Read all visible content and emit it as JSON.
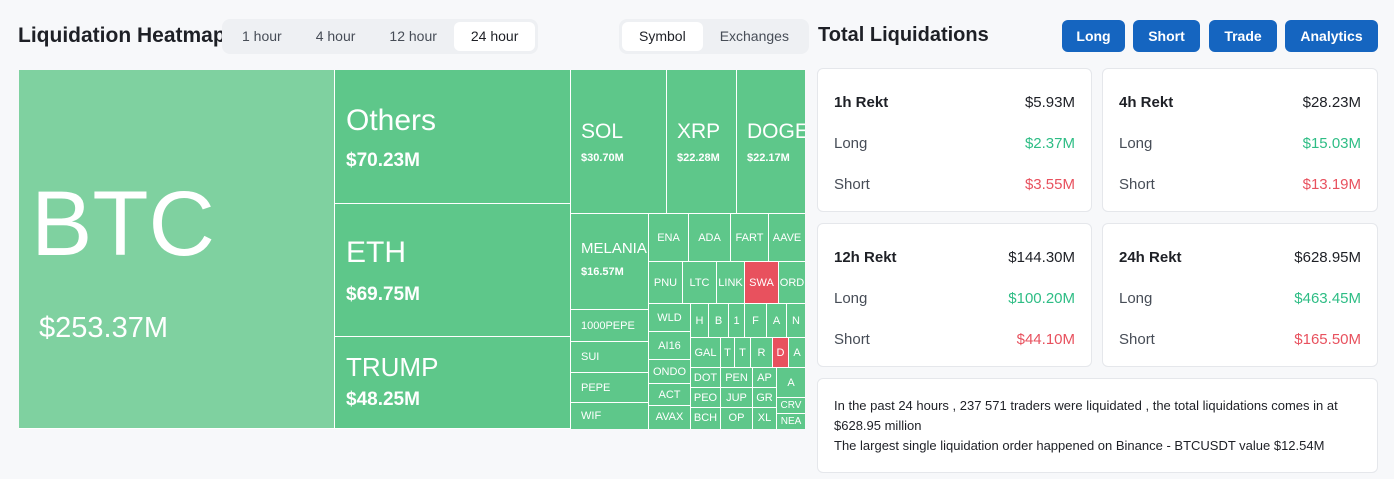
{
  "heatmap": {
    "title": "Liquidation Heatmap",
    "time_tabs": [
      "1 hour",
      "4 hour",
      "12 hour",
      "24 hour"
    ],
    "active_time_tab": "24 hour",
    "view_tabs": [
      "Symbol",
      "Exchanges"
    ],
    "active_view_tab": "Symbol",
    "cells": {
      "btc": {
        "name": "BTC",
        "value": "$253.37M"
      },
      "others": {
        "name": "Others",
        "value": "$70.23M"
      },
      "eth": {
        "name": "ETH",
        "value": "$69.75M"
      },
      "trump": {
        "name": "TRUMP",
        "value": "$48.25M"
      },
      "sol": {
        "name": "SOL",
        "value": "$30.70M"
      },
      "xrp": {
        "name": "XRP",
        "value": "$22.28M"
      },
      "doge": {
        "name": "DOGE",
        "value": "$22.17M"
      },
      "melania": {
        "name": "MELANIA",
        "value": "$16.57M"
      },
      "small": [
        "1000PEPE",
        "SUI",
        "PEPE",
        "WIF",
        "ENA",
        "ADA",
        "FART",
        "AAVE",
        "PNU",
        "LTC",
        "LINK",
        "SWA",
        "ORD",
        "WLD",
        "H",
        "B",
        "1",
        "F",
        "A",
        "N",
        "AI16",
        "GAL",
        "T",
        "T",
        "R",
        "D",
        "A",
        "ONDO",
        "DOT",
        "PEN",
        "AP",
        "A",
        "ACT",
        "PEO",
        "JUP",
        "GR",
        "CRV",
        "AVAX",
        "BCH",
        "OP",
        "XL",
        "NEA"
      ]
    }
  },
  "totals": {
    "title": "Total Liquidations",
    "buttons": [
      "Long",
      "Short",
      "Trade",
      "Analytics"
    ],
    "cards": [
      {
        "label": "1h Rekt",
        "total": "$5.93M",
        "long_label": "Long",
        "long": "$2.37M",
        "short_label": "Short",
        "short": "$3.55M"
      },
      {
        "label": "4h Rekt",
        "total": "$28.23M",
        "long_label": "Long",
        "long": "$15.03M",
        "short_label": "Short",
        "short": "$13.19M"
      },
      {
        "label": "12h Rekt",
        "total": "$144.30M",
        "long_label": "Long",
        "long": "$100.20M",
        "short_label": "Short",
        "short": "$44.10M"
      },
      {
        "label": "24h Rekt",
        "total": "$628.95M",
        "long_label": "Long",
        "long": "$463.45M",
        "short_label": "Short",
        "short": "$165.50M"
      }
    ],
    "summary_line1": "In the past 24 hours , 237 571 traders were liquidated , the total liquidations comes in at $628.95 million",
    "summary_line2": "The largest single liquidation order happened on Binance - BTCUSDT value $12.54M"
  },
  "colors": {
    "green": "#5ec78a",
    "red": "#e8515e",
    "accent": "#1565c0"
  }
}
